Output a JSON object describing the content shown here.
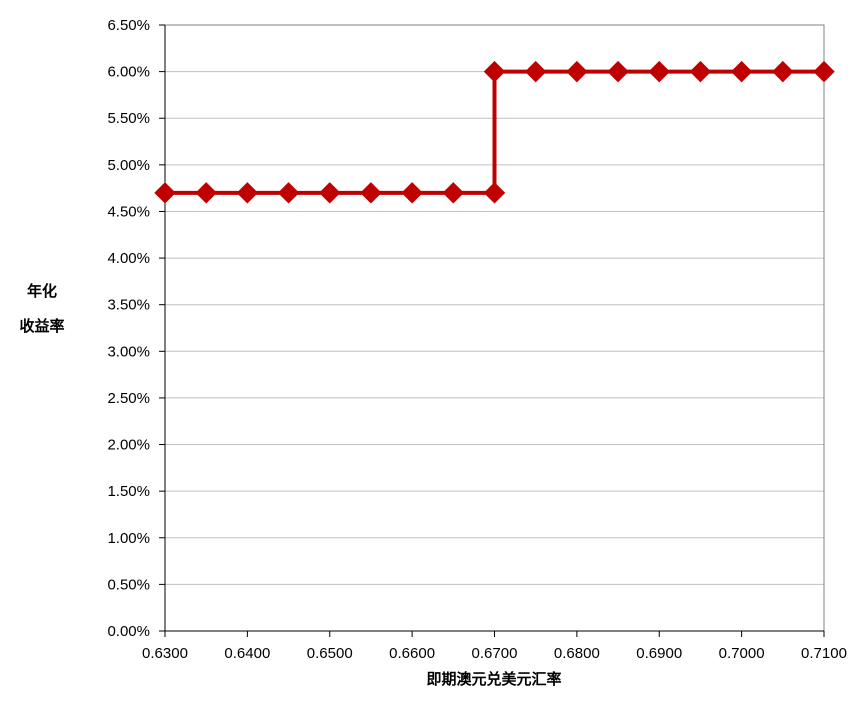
{
  "chart_data": {
    "type": "line",
    "title": "",
    "xlabel": "即期澳元兑美元汇率",
    "ylabel_lines": [
      "年化",
      "收益率"
    ],
    "x": [
      0.63,
      0.635,
      0.64,
      0.645,
      0.65,
      0.655,
      0.66,
      0.665,
      0.67,
      0.67,
      0.675,
      0.68,
      0.685,
      0.69,
      0.695,
      0.7,
      0.705,
      0.71
    ],
    "series": [
      {
        "name": "",
        "color": "#c00000",
        "marker": "diamond",
        "values": [
          0.047,
          0.047,
          0.047,
          0.047,
          0.047,
          0.047,
          0.047,
          0.047,
          0.047,
          0.06,
          0.06,
          0.06,
          0.06,
          0.06,
          0.06,
          0.06,
          0.06,
          0.06
        ]
      }
    ],
    "xlim": [
      0.63,
      0.71
    ],
    "ylim": [
      0,
      0.065
    ],
    "x_ticks": [
      "0.6300",
      "0.6400",
      "0.6500",
      "0.6600",
      "0.6700",
      "0.6800",
      "0.6900",
      "0.7000",
      "0.7100"
    ],
    "y_ticks": [
      "0.00%",
      "0.50%",
      "1.00%",
      "1.50%",
      "2.00%",
      "2.50%",
      "3.00%",
      "3.50%",
      "4.00%",
      "4.50%",
      "5.00%",
      "5.50%",
      "6.00%",
      "6.50%"
    ],
    "grid": "horizontal",
    "gridColor": "#c0c0c0",
    "axisColor": "#808080"
  }
}
